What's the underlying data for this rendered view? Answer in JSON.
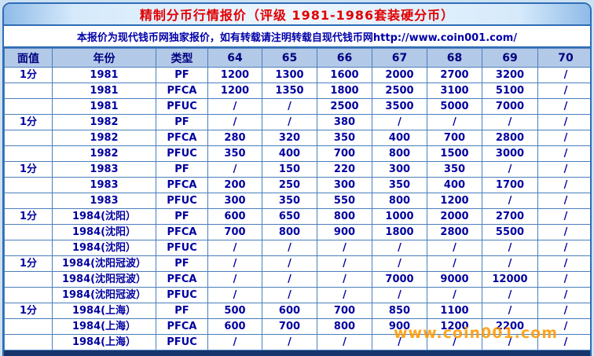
{
  "title": "精制分币行情报价（评级 1981-1986套装硬分币）",
  "notice": "本报价为现代钱币网独家报价，如有转载请注明转载自现代钱币网http://www.coin001.com/",
  "watermark": "www.coin001.com",
  "colors": {
    "title_text": "#e10000",
    "notice_text": "#0000a8",
    "header_bg": "#b3c9e8",
    "face_col_bg": "#d9e5f8",
    "year_col_bg": "#ccccff",
    "grid_line": "#4a7ebb",
    "frame_border": "#2f6db5",
    "value_text": "#0000a0",
    "highlight_red": "#ff0000",
    "watermark_orange": "#ff9900"
  },
  "table": {
    "headers": [
      "面值",
      "年份",
      "类型",
      "64",
      "65",
      "66",
      "67",
      "68",
      "69",
      "70"
    ],
    "rows": [
      {
        "face": "1分",
        "year": "1981",
        "type": "PF",
        "values": [
          "1200",
          "1300",
          "1600",
          "2000",
          "2700",
          "3200",
          "/"
        ],
        "red": []
      },
      {
        "face": "",
        "year": "1981",
        "type": "PFCA",
        "values": [
          "1200",
          "1350",
          "1800",
          "2500",
          "3100",
          "5100",
          "/"
        ],
        "red": []
      },
      {
        "face": "",
        "year": "1981",
        "type": "PFUC",
        "values": [
          "/",
          "/",
          "2500",
          "3500",
          "5000",
          "7000",
          "/"
        ],
        "red": []
      },
      {
        "face": "1分",
        "year": "1982",
        "type": "PF",
        "values": [
          "/",
          "/",
          "380",
          "/",
          "/",
          "/",
          "/"
        ],
        "red": []
      },
      {
        "face": "",
        "year": "1982",
        "type": "PFCA",
        "values": [
          "280",
          "320",
          "350",
          "400",
          "700",
          "2800",
          "/"
        ],
        "red": []
      },
      {
        "face": "",
        "year": "1982",
        "type": "PFUC",
        "values": [
          "350",
          "400",
          "700",
          "800",
          "1500",
          "3000",
          "/"
        ],
        "red": []
      },
      {
        "face": "1分",
        "year": "1983",
        "type": "PF",
        "values": [
          "/",
          "150",
          "220",
          "300",
          "350",
          "/",
          "/"
        ],
        "red": []
      },
      {
        "face": "",
        "year": "1983",
        "type": "PFCA",
        "values": [
          "200",
          "250",
          "300",
          "350",
          "400",
          "1700",
          "/"
        ],
        "red": []
      },
      {
        "face": "",
        "year": "1983",
        "type": "PFUC",
        "values": [
          "300",
          "350",
          "550",
          "800",
          "1200",
          "/",
          "/"
        ],
        "red": []
      },
      {
        "face": "1分",
        "year": "1984(沈阳）",
        "type": "PF",
        "values": [
          "600",
          "650",
          "800",
          "1000",
          "2000",
          "2700",
          "/"
        ],
        "red": [
          2,
          3
        ]
      },
      {
        "face": "",
        "year": "1984(沈阳）",
        "type": "PFCA",
        "values": [
          "700",
          "800",
          "900",
          "1800",
          "2800",
          "5500",
          "/"
        ],
        "red": [
          3
        ]
      },
      {
        "face": "",
        "year": "1984(沈阳）",
        "type": "PFUC",
        "values": [
          "/",
          "/",
          "/",
          "/",
          "/",
          "/",
          "/"
        ],
        "red": []
      },
      {
        "face": "1分",
        "year": "1984(沈阳冠波）",
        "type": "PF",
        "values": [
          "/",
          "/",
          "/",
          "/",
          "/",
          "/",
          "/"
        ],
        "red": []
      },
      {
        "face": "",
        "year": "1984(沈阳冠波）",
        "type": "PFCA",
        "values": [
          "/",
          "/",
          "/",
          "7000",
          "9000",
          "12000",
          "/"
        ],
        "red": []
      },
      {
        "face": "",
        "year": "1984(沈阳冠波）",
        "type": "PFUC",
        "values": [
          "/",
          "/",
          "/",
          "/",
          "/",
          "/",
          "/"
        ],
        "red": []
      },
      {
        "face": "1分",
        "year": "1984(上海）",
        "type": "PF",
        "values": [
          "500",
          "600",
          "700",
          "850",
          "1100",
          "/",
          "/"
        ],
        "red": []
      },
      {
        "face": "",
        "year": "1984(上海）",
        "type": "PFCA",
        "values": [
          "600",
          "700",
          "800",
          "900",
          "1200",
          "2200",
          "/"
        ],
        "red": []
      },
      {
        "face": "",
        "year": "1984(上海）",
        "type": "PFUC",
        "values": [
          "/",
          "/",
          "/",
          "/",
          "/",
          "/",
          "/"
        ],
        "red": []
      }
    ]
  }
}
